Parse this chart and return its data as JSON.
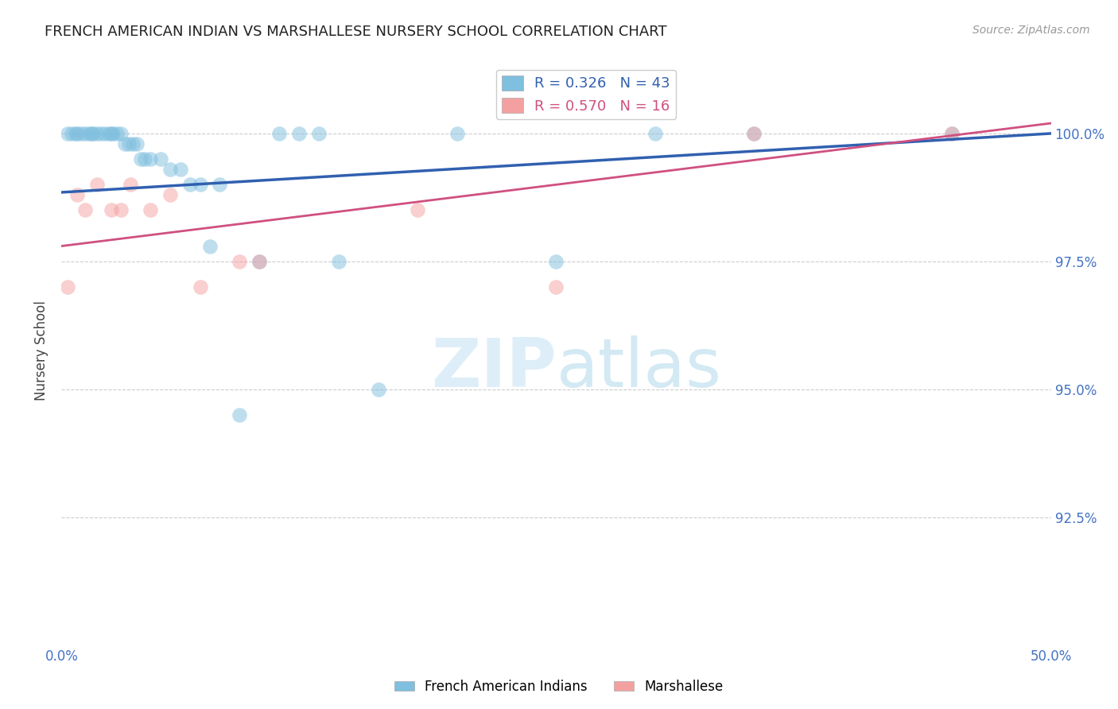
{
  "title": "FRENCH AMERICAN INDIAN VS MARSHALLESE NURSERY SCHOOL CORRELATION CHART",
  "source_text": "Source: ZipAtlas.com",
  "ylabel": "Nursery School",
  "xlim": [
    0.0,
    50.0
  ],
  "ylim": [
    90.0,
    101.5
  ],
  "xticks": [
    0.0,
    12.5,
    25.0,
    37.5,
    50.0
  ],
  "xticklabels": [
    "0.0%",
    "",
    "",
    "",
    "50.0%"
  ],
  "yticks": [
    92.5,
    95.0,
    97.5,
    100.0
  ],
  "yticklabels": [
    "92.5%",
    "95.0%",
    "97.5%",
    "100.0%"
  ],
  "blue_r": 0.326,
  "blue_n": 43,
  "pink_r": 0.57,
  "pink_n": 16,
  "blue_color": "#7fbfdf",
  "pink_color": "#f4a0a0",
  "blue_line_color": "#3060b0",
  "pink_line_color": "#d05080",
  "blue_points_x": [
    0.3,
    0.5,
    0.7,
    0.8,
    1.0,
    1.2,
    1.4,
    1.5,
    1.6,
    1.8,
    2.0,
    2.2,
    2.4,
    2.5,
    2.6,
    2.8,
    3.0,
    3.2,
    3.4,
    3.6,
    3.8,
    4.0,
    4.2,
    4.5,
    5.0,
    5.5,
    6.0,
    6.5,
    7.0,
    7.5,
    8.0,
    9.0,
    10.0,
    11.0,
    12.0,
    13.0,
    14.0,
    16.0,
    20.0,
    25.0,
    30.0,
    35.0,
    45.0
  ],
  "blue_points_y": [
    100.0,
    100.0,
    100.0,
    100.0,
    100.0,
    100.0,
    100.0,
    100.0,
    100.0,
    100.0,
    100.0,
    100.0,
    100.0,
    100.0,
    100.0,
    100.0,
    100.0,
    99.8,
    99.8,
    99.8,
    99.8,
    99.5,
    99.5,
    99.5,
    99.5,
    99.3,
    99.3,
    99.0,
    99.0,
    97.8,
    99.0,
    94.5,
    97.5,
    100.0,
    100.0,
    100.0,
    97.5,
    95.0,
    100.0,
    97.5,
    100.0,
    100.0,
    100.0
  ],
  "pink_points_x": [
    0.3,
    0.8,
    1.2,
    1.8,
    2.5,
    3.0,
    3.5,
    4.5,
    5.5,
    7.0,
    9.0,
    10.0,
    18.0,
    25.0,
    35.0,
    45.0
  ],
  "pink_points_y": [
    97.0,
    98.8,
    98.5,
    99.0,
    98.5,
    98.5,
    99.0,
    98.5,
    98.8,
    97.0,
    97.5,
    97.5,
    98.5,
    97.0,
    100.0,
    100.0
  ],
  "blue_trendline_x0": 0.0,
  "blue_trendline_y0": 98.85,
  "blue_trendline_x1": 50.0,
  "blue_trendline_y1": 100.0,
  "pink_trendline_x0": 0.0,
  "pink_trendline_y0": 97.8,
  "pink_trendline_x1": 50.0,
  "pink_trendline_y1": 100.2,
  "legend_blue_label": "R = 0.326   N = 43",
  "legend_pink_label": "R = 0.570   N = 16",
  "grid_color": "#cccccc",
  "tick_color": "#4472c4",
  "bg_color": "#ffffff"
}
